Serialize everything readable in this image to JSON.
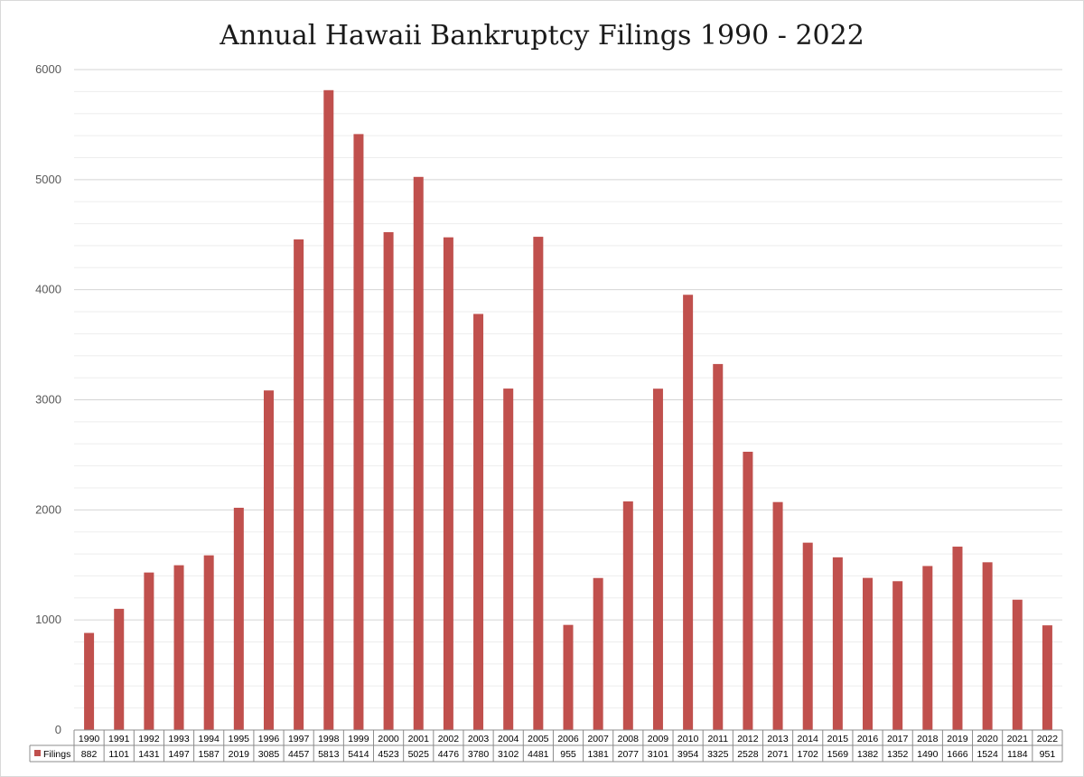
{
  "chart_data": {
    "type": "bar",
    "title": "Annual Hawaii Bankruptcy Filings 1990 - 2022",
    "xlabel": "",
    "ylabel": "",
    "ylim": [
      0,
      6000
    ],
    "yticks": [
      "0",
      "1000",
      "2000",
      "3000",
      "4000",
      "5000",
      "6000"
    ],
    "ytick_values": [
      0,
      1000,
      2000,
      3000,
      4000,
      5000,
      6000
    ],
    "grid": true,
    "legend": "data-table",
    "categories": [
      "1990",
      "1991",
      "1992",
      "1993",
      "1994",
      "1995",
      "1996",
      "1997",
      "1998",
      "1999",
      "2000",
      "2001",
      "2002",
      "2003",
      "2004",
      "2005",
      "2006",
      "2007",
      "2008",
      "2009",
      "2010",
      "2011",
      "2012",
      "2013",
      "2014",
      "2015",
      "2016",
      "2017",
      "2018",
      "2019",
      "2020",
      "2021",
      "2022"
    ],
    "series": [
      {
        "name": "Filings",
        "color": "#c0504d",
        "values": [
          882,
          1101,
          1431,
          1497,
          1587,
          2019,
          3085,
          4457,
          5813,
          5414,
          4523,
          5025,
          4476,
          3780,
          3102,
          4481,
          955,
          1381,
          2077,
          3101,
          3954,
          3325,
          2528,
          2071,
          1702,
          1569,
          1382,
          1352,
          1490,
          1666,
          1524,
          1184,
          951
        ]
      }
    ]
  }
}
